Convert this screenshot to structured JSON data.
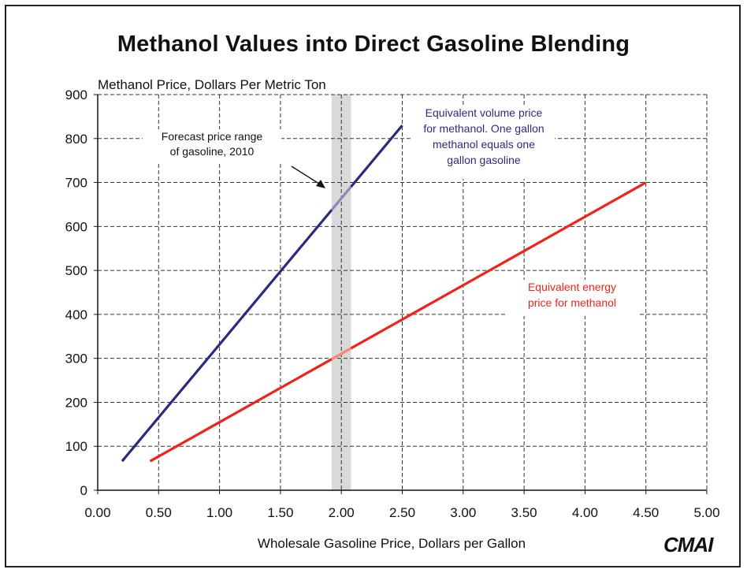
{
  "chart_data": {
    "type": "line",
    "title": "Methanol Values into Direct Gasoline Blending",
    "ylabel": "Methanol Price, Dollars Per Metric Ton",
    "xlabel": "Wholesale Gasoline Price, Dollars per Gallon",
    "xlim": [
      0,
      5
    ],
    "ylim": [
      0,
      900
    ],
    "x_ticks": [
      "0.00",
      "0.50",
      "1.00",
      "1.50",
      "2.00",
      "2.50",
      "3.00",
      "3.50",
      "4.00",
      "4.50",
      "5.00"
    ],
    "y_ticks": [
      "0",
      "100",
      "200",
      "300",
      "400",
      "500",
      "600",
      "700",
      "800",
      "900"
    ],
    "grid": true,
    "series": [
      {
        "label": "Equivalent volume price for methanol. One gallon methanol equals one gallon gasoline",
        "color": "#2b2b7e",
        "x": [
          0.2,
          2.5
        ],
        "y": [
          66,
          830
        ]
      },
      {
        "label": "Equivalent energy price for methanol",
        "color": "#ef2418",
        "x": [
          0.43,
          4.5
        ],
        "y": [
          66,
          700
        ]
      }
    ],
    "shaded_band": {
      "x": [
        1.92,
        2.08
      ],
      "color": "#d9d9d9"
    },
    "annotations": [
      {
        "lines": [
          "Forecast price range",
          "of gasoline, 2010"
        ],
        "color": "#111111"
      },
      {
        "lines": [
          "Equivalent volume price",
          "for methanol.  One gallon",
          "methanol equals one",
          "gallon gasoline"
        ],
        "color": "#2b2b7e"
      },
      {
        "lines": [
          "Equivalent energy",
          "price for methanol"
        ],
        "color": "#ef2418"
      }
    ]
  },
  "logo_text": "CMAI"
}
